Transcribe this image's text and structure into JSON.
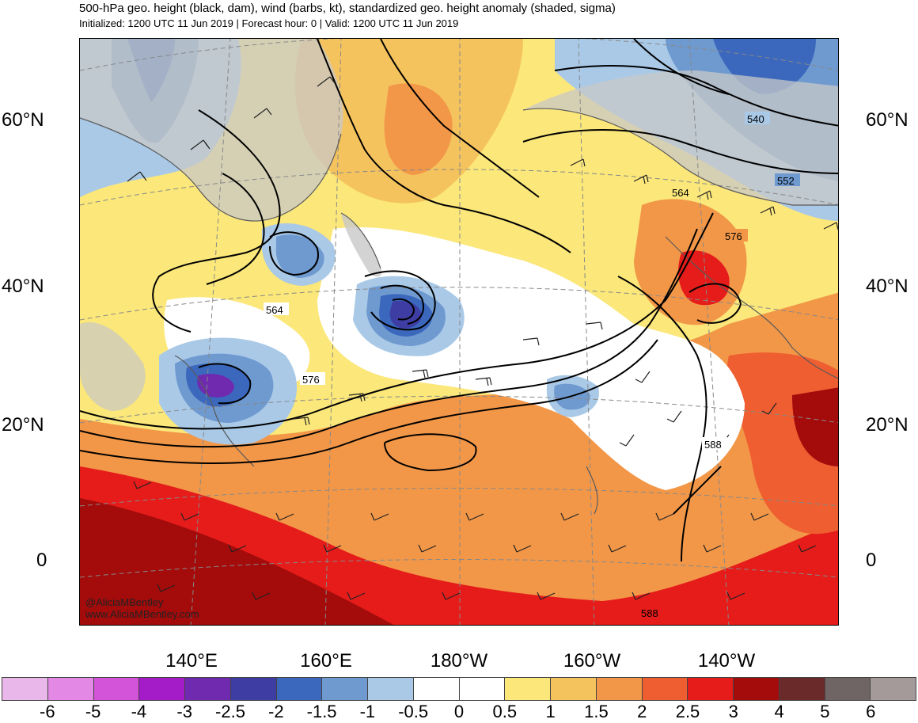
{
  "header": {
    "title": "500-hPa geo. height (black, dam), wind (barbs, kt), standardized geo. height anomaly (shaded, sigma)",
    "subtitle": "Initialized: 1200 UTC 11 Jun 2019 | Forecast hour: 0 | Valid: 1200 UTC 11 Jun 2019"
  },
  "map": {
    "lat_labels": [
      "60°N",
      "40°N",
      "20°N",
      "0"
    ],
    "lon_labels": [
      "140°E",
      "160°E",
      "180°W",
      "160°W",
      "140°W"
    ],
    "contour_labels": [
      "540",
      "552",
      "564",
      "576",
      "564",
      "576",
      "588",
      "588"
    ],
    "credit": {
      "handle": "@AliciaMBentley",
      "site": "www.AliciaMBentley.com"
    },
    "colors": {
      "land_gray": "#c8c8c8",
      "coast": "#5a5a5a",
      "contour": "#000000",
      "barb": "#222222"
    }
  },
  "colorbar": {
    "ticks": [
      "-6",
      "-5",
      "-4",
      "-3",
      "-2.5",
      "-2",
      "-1.5",
      "-1",
      "-0.5",
      "0",
      "0.5",
      "1",
      "1.5",
      "2",
      "2.5",
      "3",
      "4",
      "5",
      "6"
    ],
    "colors": [
      "#e9b7e9",
      "#e388e4",
      "#d354d8",
      "#a41bc8",
      "#6f2ab0",
      "#3d3da4",
      "#3b68bd",
      "#6f9ad0",
      "#a9c9e7",
      "#ffffff",
      "#ffffff",
      "#fbe77a",
      "#f5c35e",
      "#f29748",
      "#ef5e30",
      "#e51c1a",
      "#a40b0b",
      "#6b2a2a",
      "#6f6565",
      "#a59a9a"
    ]
  }
}
